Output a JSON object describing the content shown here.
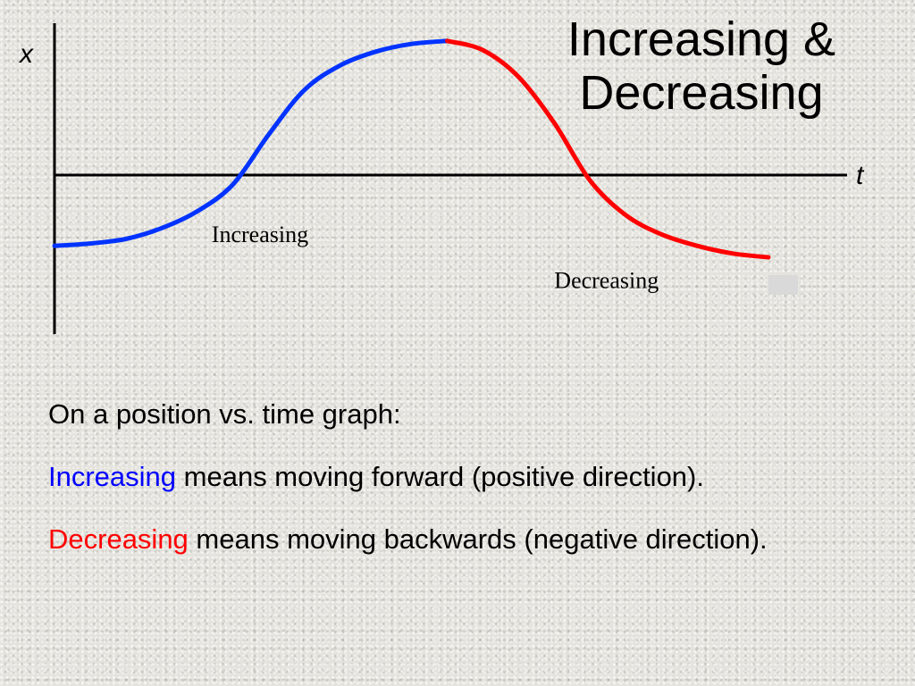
{
  "title": {
    "line1": "Increasing &",
    "line2": "Decreasing"
  },
  "chart_data": {
    "type": "line",
    "title": "",
    "xlabel": "t",
    "ylabel": "x",
    "xlim": [
      0,
      10
    ],
    "ylim": [
      -2.2,
      1.85
    ],
    "grid": false,
    "legend": "none",
    "annotations": [
      {
        "text": "Increasing",
        "x": 2.2,
        "y": -1.0
      },
      {
        "text": "Decreasing",
        "x": 7.0,
        "y": -1.6
      }
    ],
    "series": [
      {
        "color": "#0033ff",
        "x": [
          0,
          0.5,
          1.0,
          1.5,
          2.0,
          2.5,
          3.0,
          3.5,
          4.0,
          4.5,
          5.0,
          5.5
        ],
        "y": [
          -1.05,
          -1.02,
          -0.96,
          -0.82,
          -0.6,
          -0.25,
          0.4,
          0.98,
          1.3,
          1.48,
          1.58,
          1.62
        ]
      },
      {
        "color": "#ff0000",
        "x": [
          5.5,
          6.0,
          6.5,
          7.0,
          7.5,
          8.0,
          8.5,
          9.0,
          9.5,
          10.0
        ],
        "y": [
          1.62,
          1.5,
          1.15,
          0.55,
          -0.2,
          -0.65,
          -0.9,
          -1.05,
          -1.15,
          -1.2
        ]
      }
    ]
  },
  "body": {
    "line1": "On a position vs. time graph:",
    "increasing_word": "Increasing",
    "increasing_rest": " means moving forward (positive direction).",
    "decreasing_word": "Decreasing",
    "decreasing_rest": " means moving backwards (negative direction)."
  }
}
